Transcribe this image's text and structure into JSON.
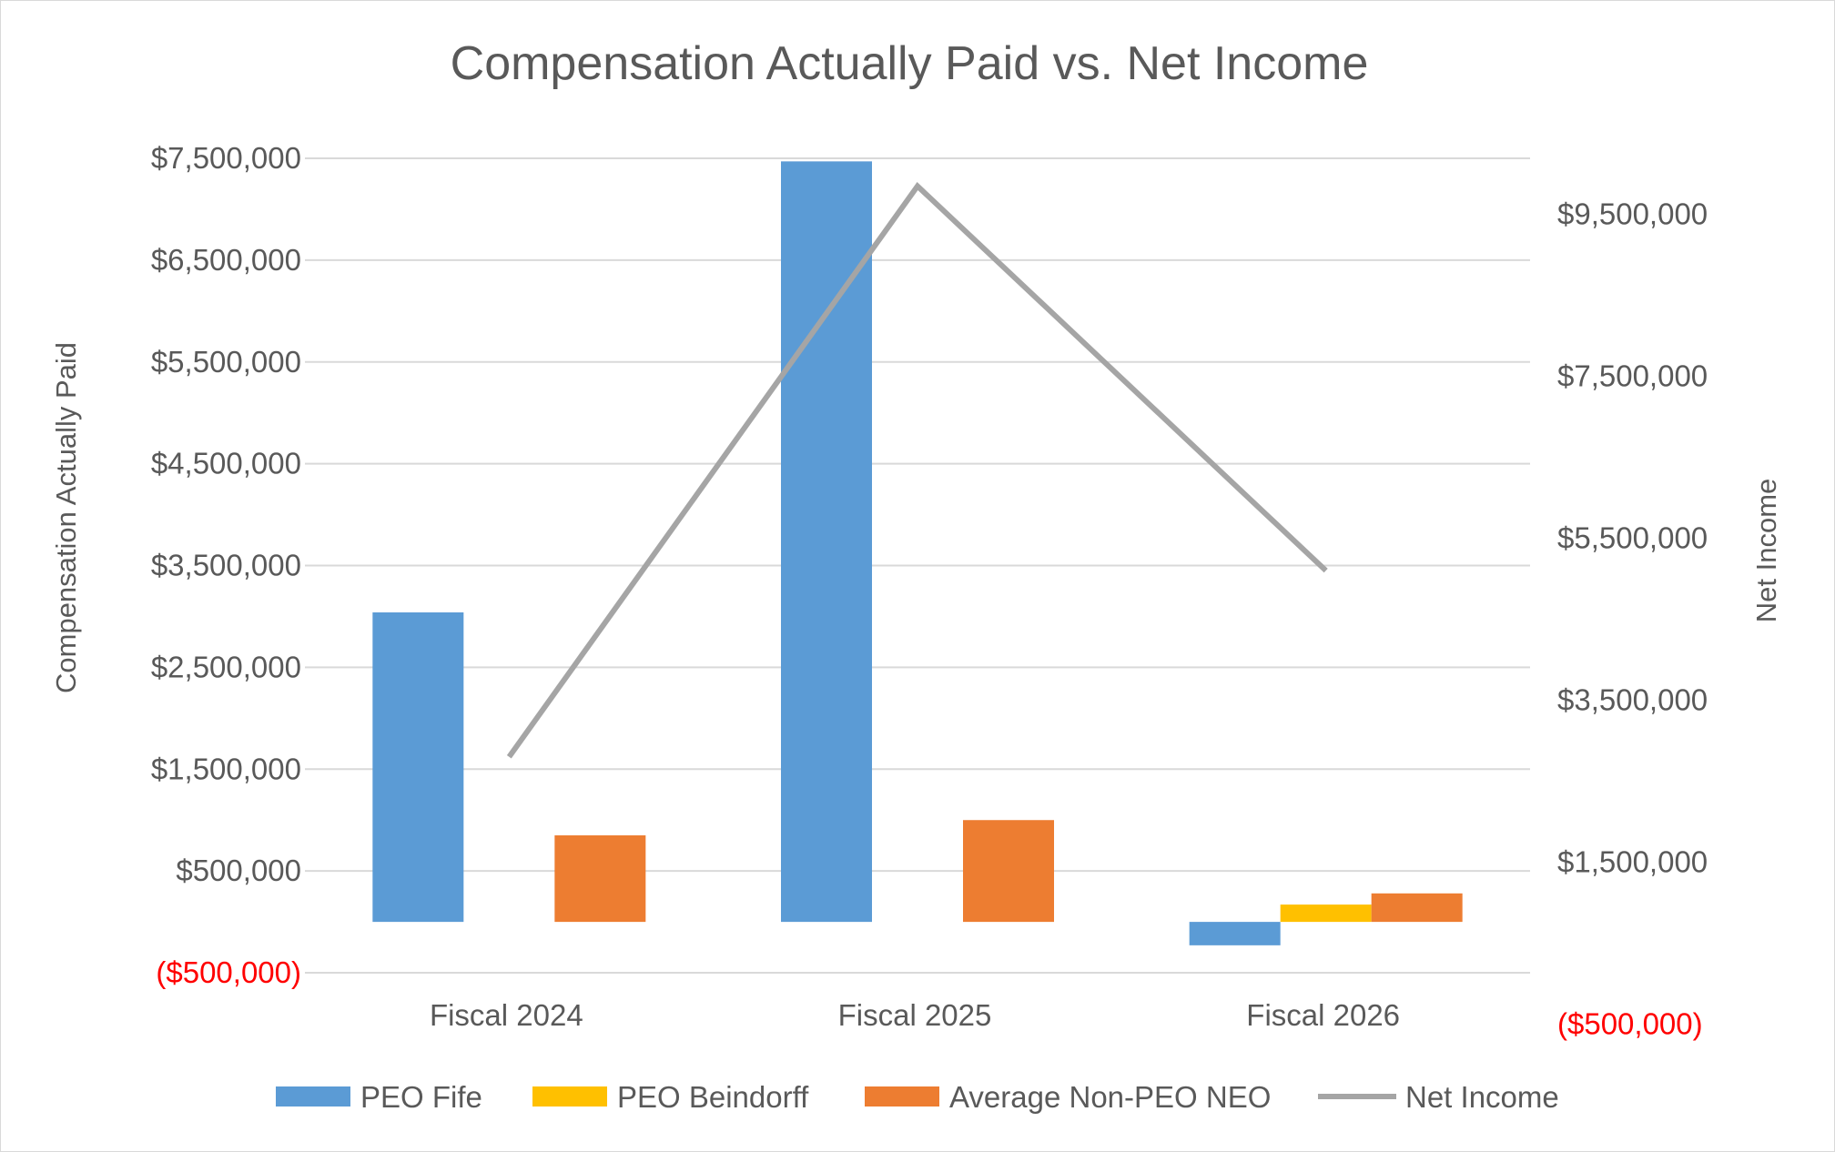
{
  "chart_data": {
    "type": "bar",
    "title": "Compensation Actually Paid vs. Net Income",
    "ylabel_left": "Compensation Actually Paid",
    "ylabel_right": "Net Income",
    "categories": [
      "Fiscal 2024",
      "Fiscal 2025",
      "Fiscal 2026"
    ],
    "left_axis": {
      "min": -1000000,
      "max": 7500000,
      "ticks": [
        -500000,
        500000,
        1500000,
        2500000,
        3500000,
        4500000,
        5500000,
        6500000,
        7500000
      ],
      "tick_labels": [
        "($500,000)",
        "$500,000",
        "$1,500,000",
        "$2,500,000",
        "$3,500,000",
        "$4,500,000",
        "$5,500,000",
        "$6,500,000",
        "$7,500,000"
      ]
    },
    "right_axis": {
      "min": -500000,
      "max": 10500000,
      "ticks": [
        -500000,
        1500000,
        3500000,
        5500000,
        7500000,
        9500000
      ],
      "tick_labels": [
        "($500,000)",
        "$1,500,000",
        "$3,500,000",
        "$5,500,000",
        "$7,500,000",
        "$9,500,000"
      ]
    },
    "series": [
      {
        "name": "PEO Fife",
        "kind": "bar",
        "axis": "left",
        "color": "#5b9bd5",
        "values": [
          3040000,
          7470000,
          -230000
        ]
      },
      {
        "name": "PEO Beindorff",
        "kind": "bar",
        "axis": "left",
        "color": "#ffc000",
        "values": [
          null,
          null,
          170000
        ]
      },
      {
        "name": "Average Non-PEO NEO",
        "kind": "bar",
        "axis": "left",
        "color": "#ed7d31",
        "values": [
          850000,
          1000000,
          280000
        ]
      },
      {
        "name": "Net Income",
        "kind": "line",
        "axis": "right",
        "color": "#a5a5a5",
        "values": [
          2800000,
          9850000,
          5100000
        ]
      }
    ],
    "legend_position": "bottom",
    "grid": true
  }
}
